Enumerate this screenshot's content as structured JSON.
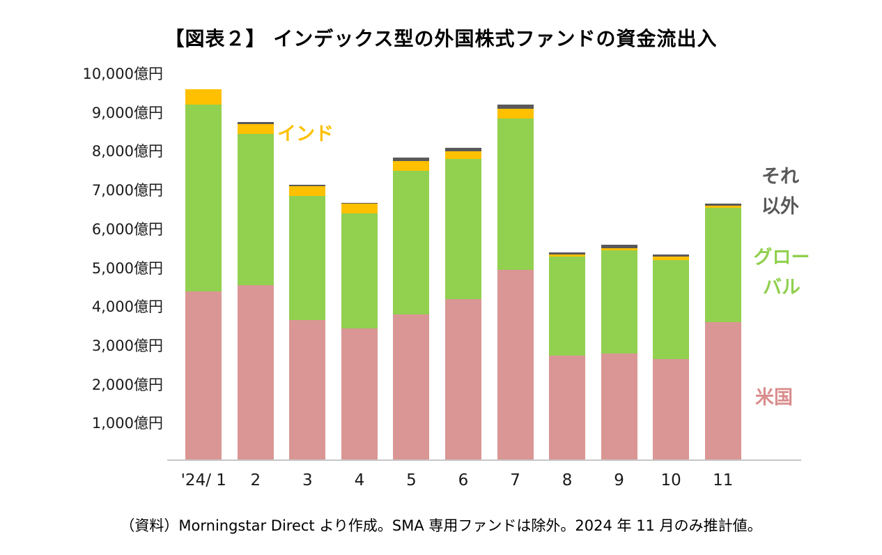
{
  "title": "【図表２】 インデックス型の外国株式ファンドの資金流出入",
  "footer": "（資料）Morningstar Direct より作成。SMA 専用ファンドは除外。2024 年 11 月のみ推計値。",
  "chart_data": {
    "type": "bar",
    "stacked": true,
    "unit": "億円",
    "title": "【図表２】 インデックス型の外国株式ファンドの資金流出入",
    "categories": [
      "'24/ 1",
      "2",
      "3",
      "4",
      "5",
      "6",
      "7",
      "8",
      "9",
      "10",
      "11"
    ],
    "series": [
      {
        "key": "us",
        "name": "米国",
        "color": "#D99694",
        "values": [
          4350,
          4500,
          3600,
          3400,
          3750,
          4150,
          4900,
          2700,
          2750,
          2600,
          3550
        ]
      },
      {
        "key": "global",
        "name": "グローバル",
        "color": "#92D050",
        "values": [
          4800,
          3900,
          3200,
          2950,
          3700,
          3600,
          3900,
          2550,
          2650,
          2550,
          2950
        ]
      },
      {
        "key": "india",
        "name": "インド",
        "color": "#FFC000",
        "values": [
          400,
          250,
          250,
          250,
          250,
          200,
          250,
          50,
          50,
          100,
          50
        ]
      },
      {
        "key": "other",
        "name": "それ以外",
        "color": "#595959",
        "values": [
          0,
          50,
          50,
          30,
          100,
          100,
          100,
          50,
          100,
          50,
          50
        ]
      }
    ],
    "ylim": [
      0,
      10000
    ],
    "ytick_step": 1000,
    "ytick_labels": [
      "1,000億円",
      "2,000億円",
      "3,000億円",
      "4,000億円",
      "5,000億円",
      "6,000億円",
      "7,000億円",
      "8,000億円",
      "9,000億円",
      "10,000億円"
    ],
    "grid": false,
    "legend_position": "inline-annotations"
  },
  "annotations": {
    "india": {
      "text": "インド",
      "color": "#FFC000"
    },
    "other": {
      "line1": "それ",
      "line2": "以外",
      "color": "#595959"
    },
    "global": {
      "line1": "グロー",
      "line2": "バル",
      "color": "#92D050"
    },
    "us": {
      "text": "米国",
      "color": "#D98C8C"
    }
  }
}
